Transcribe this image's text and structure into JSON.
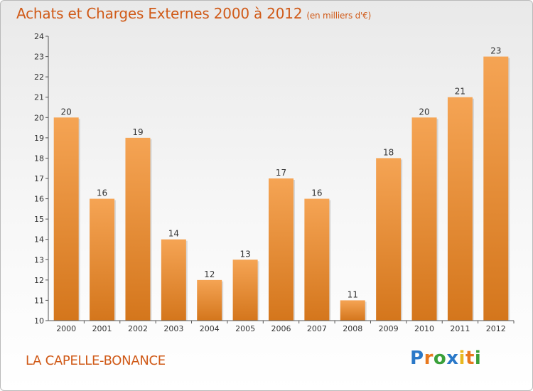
{
  "header": {
    "title": "Achats et Charges Externes 2000 à 2012",
    "subtitle": "(en milliers d'€)"
  },
  "footer": {
    "commune": "LA CAPELLE-BONANCE",
    "logo": [
      "P",
      "r",
      "o",
      "x",
      "i",
      "t",
      "i"
    ]
  },
  "colors": {
    "title": "#d05a18",
    "bar_top": "#f5a454",
    "bar_bottom": "#d4761c",
    "axis": "#555555"
  },
  "chart_data": {
    "type": "bar",
    "categories": [
      "2000",
      "2001",
      "2002",
      "2003",
      "2004",
      "2005",
      "2006",
      "2007",
      "2008",
      "2009",
      "2010",
      "2011",
      "2012"
    ],
    "values": [
      20,
      16,
      19,
      14,
      12,
      13,
      17,
      16,
      11,
      18,
      20,
      21,
      23
    ],
    "title": "Achats et Charges Externes 2000 à 2012",
    "subtitle": "(en milliers d'€)",
    "ylim": [
      10,
      24
    ],
    "yticks": [
      10,
      11,
      12,
      13,
      14,
      15,
      16,
      17,
      18,
      19,
      20,
      21,
      22,
      23,
      24
    ],
    "grid": false,
    "data_labels": true
  }
}
